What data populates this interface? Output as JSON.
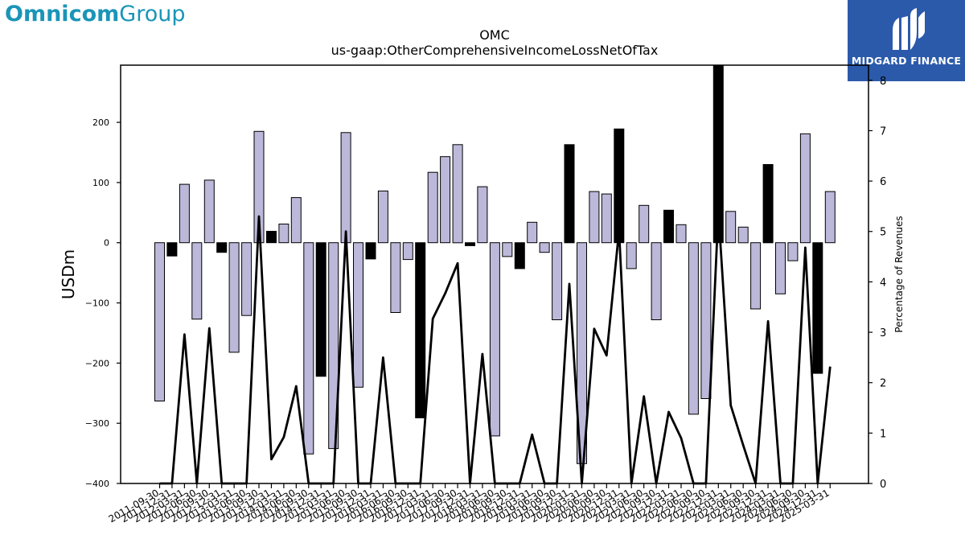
{
  "branding": {
    "left_logo_part1": "Omnicom",
    "left_logo_part2": "Group",
    "right_logo_text": "MIDGARD FINANCE",
    "left_color": "#1a95b8",
    "right_bg": "#2b5aab"
  },
  "chart_data": {
    "type": "bar",
    "title": "OMC",
    "subtitle": "us-gaap:OtherComprehensiveIncomeLossNetOfTax",
    "ylabel": "USDm",
    "y2label": "Percentage of Revenues",
    "ylim": [
      -400,
      295
    ],
    "y2lim": [
      0,
      8.3
    ],
    "yticks": [
      -400,
      -300,
      -200,
      -100,
      0,
      100,
      200
    ],
    "y2ticks": [
      0,
      1,
      2,
      3,
      4,
      5,
      6,
      7,
      8
    ],
    "bar_fill_default": "#bcb8d9",
    "bar_fill_highlight": "#000000",
    "line_color": "#000000",
    "categories": [
      "2011-09-30",
      "2011-12-31",
      "2012-03-31",
      "2012-06-30",
      "2012-09-30",
      "2012-12-31",
      "2013-03-31",
      "2013-06-30",
      "2013-09-30",
      "2013-12-31",
      "2014-03-31",
      "2014-06-30",
      "2014-09-30",
      "2014-12-31",
      "2015-03-31",
      "2015-06-30",
      "2015-09-30",
      "2015-12-31",
      "2016-03-31",
      "2016-06-30",
      "2016-09-30",
      "2016-12-31",
      "2017-03-31",
      "2017-06-30",
      "2017-09-30",
      "2017-12-31",
      "2018-03-31",
      "2018-06-30",
      "2018-09-30",
      "2018-12-31",
      "2019-03-31",
      "2019-06-30",
      "2019-09-30",
      "2019-12-31",
      "2020-03-31",
      "2020-06-30",
      "2020-09-30",
      "2020-12-31",
      "2021-03-31",
      "2021-06-30",
      "2021-09-30",
      "2021-12-31",
      "2022-03-31",
      "2022-06-30",
      "2022-09-30",
      "2022-12-31",
      "2023-03-31",
      "2023-06-30",
      "2023-09-30",
      "2023-12-31",
      "2024-03-31",
      "2024-06-30",
      "2024-09-30",
      "2024-12-31",
      "2025-03-31"
    ],
    "xtick_labels_shown": [
      "2011-09-30",
      "2011-12-31",
      "2012-03-31",
      "2012-06-30",
      "2012-09-30",
      "2012-12-31",
      "2013-03-31",
      "2013-06-30",
      "2013-09-30",
      "2013-12-31",
      "2014-03-31",
      "2014-06-30",
      "2014-09-30",
      "2014-12-31",
      "2015-03-31",
      "2015-06-30",
      "2015-09-30",
      "2015-12-31",
      "2016-03-31",
      "2016-06-30",
      "2016-09-30",
      "2016-12-31",
      "2017-03-31",
      "2017-06-30",
      "2017-09-30",
      "2017-12-31",
      "2018-03-31",
      "2018-06-30",
      "2018-09-30",
      "2018-12-31",
      "2019-03-31",
      "2019-06-30",
      "2019-09-30",
      "2019-12-31",
      "2020-03-31",
      "2020-06-30",
      "2020-09-30",
      "2020-12-31",
      "2021-03-31",
      "2021-06-30",
      "2021-09-30",
      "2021-12-31",
      "2022-03-31",
      "2022-06-30",
      "2022-09-30",
      "2022-12-31",
      "2023-03-31",
      "2023-06-30",
      "2023-09-30",
      "2023-12-31",
      "2024-03-31",
      "2024-06-30",
      "2024-09-30",
      "2024-12-31",
      "2025-03-31"
    ],
    "values": [
      -263,
      -22,
      97,
      -127,
      104,
      -16,
      -182,
      -121,
      185,
      19,
      31,
      75,
      -351,
      -222,
      -342,
      183,
      -240,
      -27,
      86,
      -116,
      -28,
      -291,
      117,
      143,
      163,
      -5,
      93,
      -321,
      -23,
      -43,
      34,
      -16,
      -128,
      163,
      -367,
      85,
      81,
      189,
      -43,
      62,
      -128,
      54,
      30,
      -285,
      -259,
      300,
      52,
      26,
      -110,
      130,
      -85,
      -30,
      181,
      -217,
      85
    ],
    "highlight": [
      false,
      true,
      false,
      false,
      false,
      true,
      false,
      false,
      false,
      true,
      false,
      false,
      false,
      true,
      false,
      false,
      false,
      true,
      false,
      false,
      false,
      true,
      false,
      false,
      false,
      true,
      false,
      false,
      false,
      true,
      false,
      false,
      false,
      true,
      false,
      false,
      false,
      true,
      false,
      false,
      false,
      true,
      false,
      false,
      false,
      true,
      false,
      false,
      false,
      true,
      false,
      false,
      false,
      true,
      false
    ],
    "line_percent": [
      0,
      0,
      2.96,
      0,
      3.08,
      0,
      0,
      0,
      5.3,
      0.48,
      0.92,
      1.93,
      0,
      0,
      0,
      5.0,
      0,
      0,
      2.5,
      0,
      0,
      0,
      3.27,
      3.77,
      4.37,
      0,
      2.57,
      0,
      0,
      0,
      0.97,
      0,
      0,
      3.96,
      0,
      3.07,
      2.54,
      5.02,
      0,
      1.73,
      0,
      1.42,
      0.9,
      0,
      0,
      5.4,
      1.55,
      0.76,
      0,
      3.22,
      0,
      0,
      4.68,
      0,
      2.32
    ]
  }
}
